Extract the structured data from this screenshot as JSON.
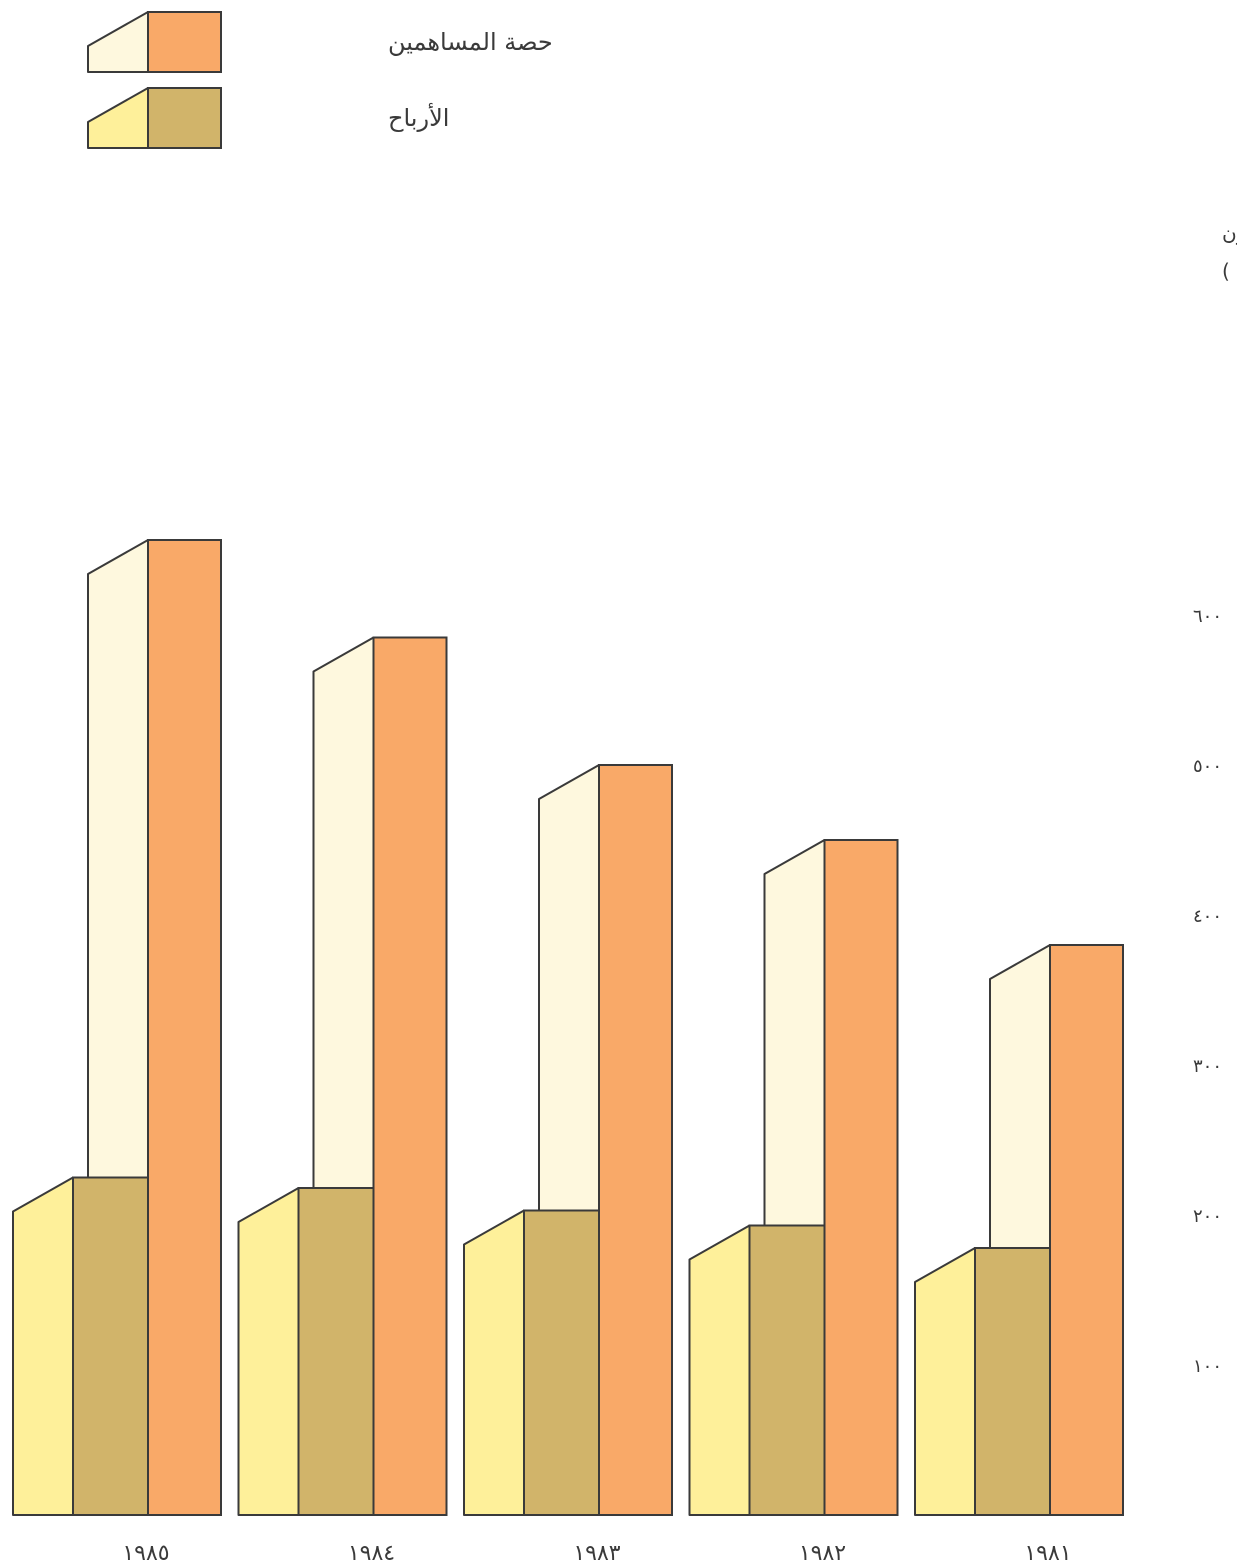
{
  "chart_data": {
    "type": "bar",
    "title": "",
    "xlabel": "",
    "ylabel_lines": [
      "( مليون",
      "ريال قطري )"
    ],
    "yticks": [
      {
        "value": 100,
        "label": "١٠٠"
      },
      {
        "value": 200,
        "label": "٢٠٠"
      },
      {
        "value": 300,
        "label": "٣٠٠"
      },
      {
        "value": 400,
        "label": "٤٠٠"
      },
      {
        "value": 500,
        "label": "٥٠٠"
      },
      {
        "value": 600,
        "label": "٦٠٠"
      }
    ],
    "ylim": [
      0,
      600
    ],
    "grid": false,
    "legend_position": "top-left",
    "categories": [
      "١٩٨٥",
      "١٩٨٤",
      "١٩٨٣",
      "١٩٨٢",
      "١٩٨١"
    ],
    "series": [
      {
        "name": "حصة المساهمين",
        "values": [
          650,
          585,
          500,
          450,
          380
        ],
        "colors": {
          "front": "#f9a968",
          "side": "#fef8de"
        }
      },
      {
        "name": "الأرباح",
        "values": [
          225,
          218,
          203,
          193,
          178
        ],
        "colors": {
          "front": "#d1b46a",
          "side": "#fef09a"
        }
      }
    ],
    "stroke_color": "#3a3a3a"
  }
}
